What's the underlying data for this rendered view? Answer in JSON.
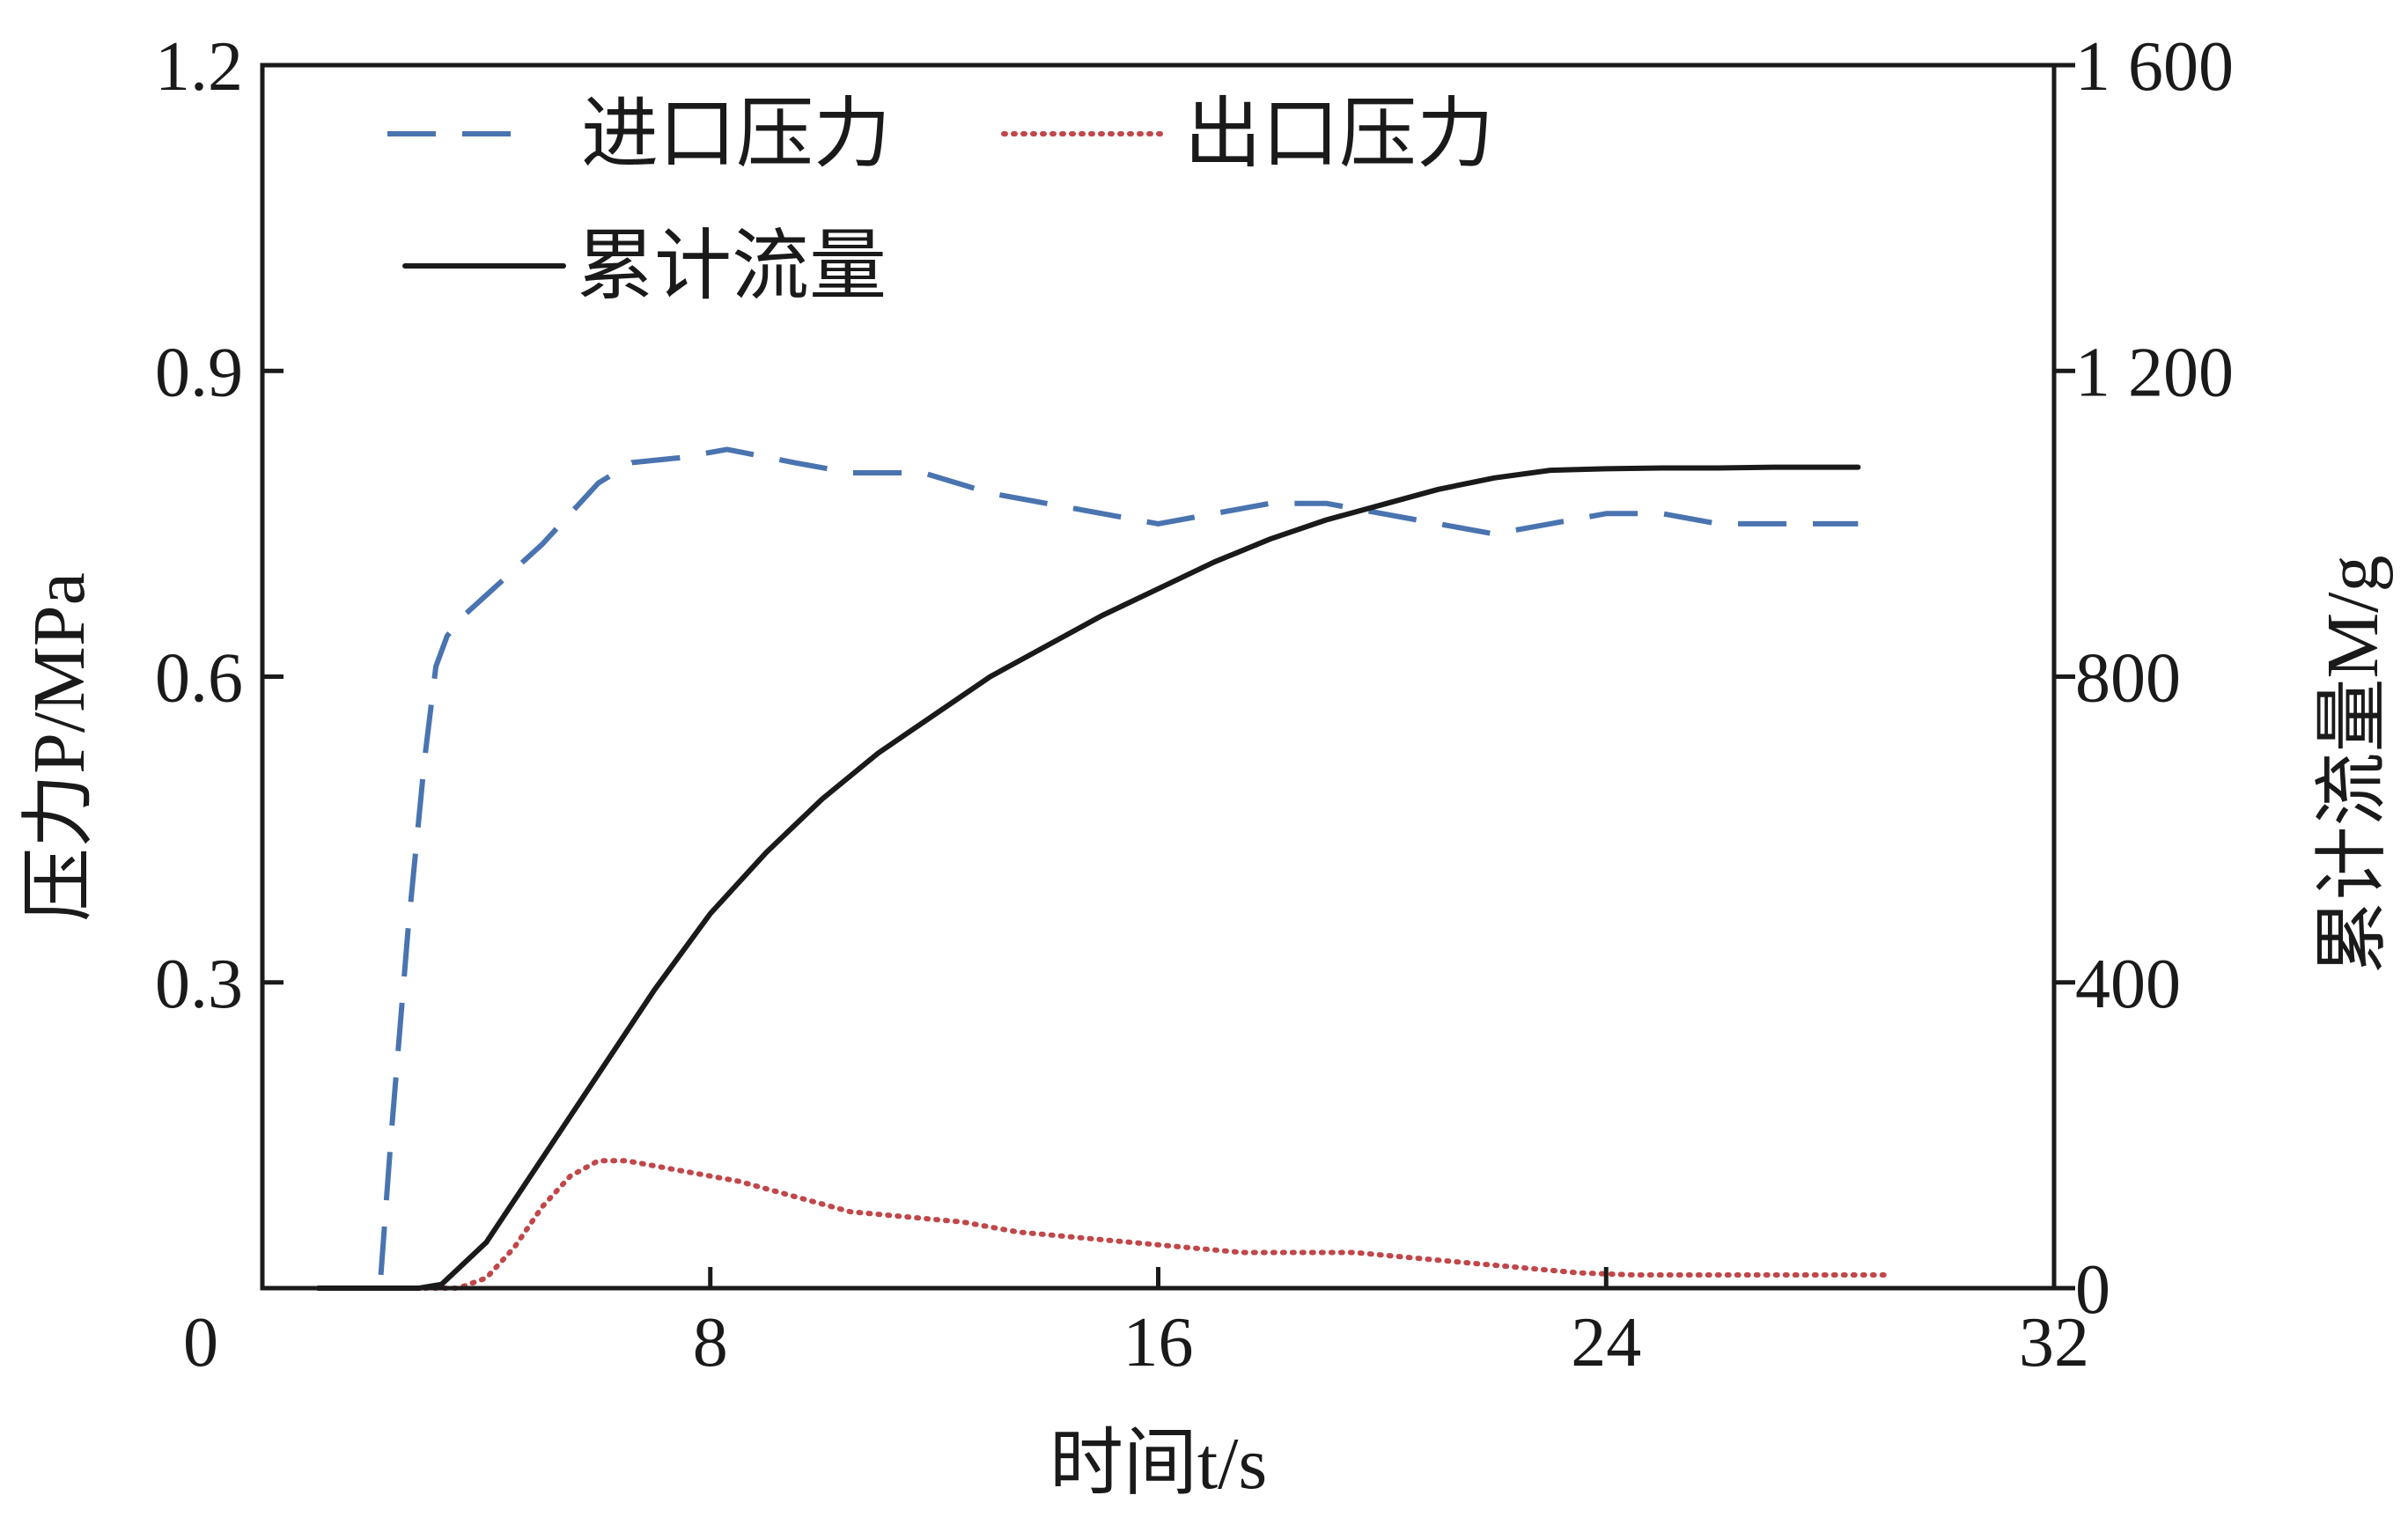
{
  "chart_data": {
    "type": "line",
    "xlabel": "时间t/s",
    "ylabel_left": "压力P/MPa",
    "ylabel_right": "累计流量M/g",
    "xlim": [
      0,
      32
    ],
    "ylim_left": [
      0,
      1.2
    ],
    "ylim_right": [
      0,
      1600
    ],
    "x_ticks": [
      {
        "value": 0,
        "label": "0"
      },
      {
        "value": 8,
        "label": "8"
      },
      {
        "value": 16,
        "label": "16"
      },
      {
        "value": 24,
        "label": "24"
      },
      {
        "value": 32,
        "label": "32"
      }
    ],
    "y_left_ticks": [
      {
        "value": 0.3,
        "label": "0.3"
      },
      {
        "value": 0.6,
        "label": "0.6"
      },
      {
        "value": 0.9,
        "label": "0.9"
      },
      {
        "value": 1.2,
        "label": "1.2"
      }
    ],
    "y_right_ticks": [
      {
        "value": 0,
        "label": "0"
      },
      {
        "value": 400,
        "label": "400"
      },
      {
        "value": 800,
        "label": "800"
      },
      {
        "value": 1200,
        "label": "1 200"
      },
      {
        "value": 1600,
        "label": "1 600"
      }
    ],
    "grid": false,
    "legend_position": "top-left",
    "series": [
      {
        "name": "进口压力",
        "axis": "left",
        "color": "#4a74b0",
        "style": "dashed",
        "x": [
          1.0,
          2.1,
          2.3,
          2.6,
          2.9,
          3.1,
          3.3,
          3.6,
          4.0,
          5.0,
          6.0,
          6.6,
          7.5,
          8.3,
          9.5,
          10.5,
          11.8,
          13.0,
          14.0,
          15.0,
          16.0,
          17.0,
          18.0,
          19.0,
          20.0,
          21.0,
          22.0,
          23.0,
          24.0,
          25.0,
          26.0,
          27.0,
          28.5
        ],
        "y": [
          0.0,
          0.0,
          0.15,
          0.35,
          0.52,
          0.61,
          0.64,
          0.66,
          0.68,
          0.73,
          0.79,
          0.81,
          0.815,
          0.823,
          0.81,
          0.8,
          0.8,
          0.78,
          0.77,
          0.76,
          0.75,
          0.76,
          0.77,
          0.77,
          0.76,
          0.75,
          0.74,
          0.75,
          0.76,
          0.76,
          0.75,
          0.75,
          0.75
        ]
      },
      {
        "name": "出口压力",
        "axis": "left",
        "color": "#c0474a",
        "style": "dotted",
        "x": [
          1.0,
          2.5,
          3.5,
          4.0,
          4.5,
          5.0,
          5.5,
          6.0,
          6.5,
          7.5,
          8.5,
          9.5,
          10.5,
          11.5,
          12.5,
          13.5,
          14.5,
          15.5,
          16.5,
          17.5,
          18.5,
          19.5,
          20.5,
          21.5,
          22.5,
          23.5,
          24.5,
          26.0,
          28.0,
          29.0
        ],
        "y": [
          0.0,
          0.0,
          0.0,
          0.01,
          0.04,
          0.08,
          0.11,
          0.125,
          0.125,
          0.115,
          0.105,
          0.09,
          0.075,
          0.07,
          0.065,
          0.055,
          0.05,
          0.045,
          0.04,
          0.035,
          0.035,
          0.035,
          0.03,
          0.025,
          0.02,
          0.015,
          0.013,
          0.013,
          0.013,
          0.013
        ]
      },
      {
        "name": "累计流量",
        "axis": "right",
        "color": "#1a1a1a",
        "style": "solid",
        "x": [
          1.0,
          2.0,
          2.8,
          3.2,
          4.0,
          5.0,
          6.0,
          7.0,
          8.0,
          9.0,
          10.0,
          11.0,
          12.0,
          13.0,
          14.0,
          15.0,
          16.0,
          17.0,
          18.0,
          19.0,
          20.0,
          21.0,
          22.0,
          23.0,
          24.0,
          25.0,
          26.0,
          27.0,
          28.5
        ],
        "y": [
          0,
          0,
          0,
          5,
          60,
          170,
          280,
          390,
          490,
          570,
          640,
          700,
          750,
          800,
          840,
          880,
          915,
          950,
          980,
          1005,
          1025,
          1045,
          1060,
          1070,
          1072,
          1073,
          1073,
          1074,
          1074
        ]
      }
    ]
  }
}
